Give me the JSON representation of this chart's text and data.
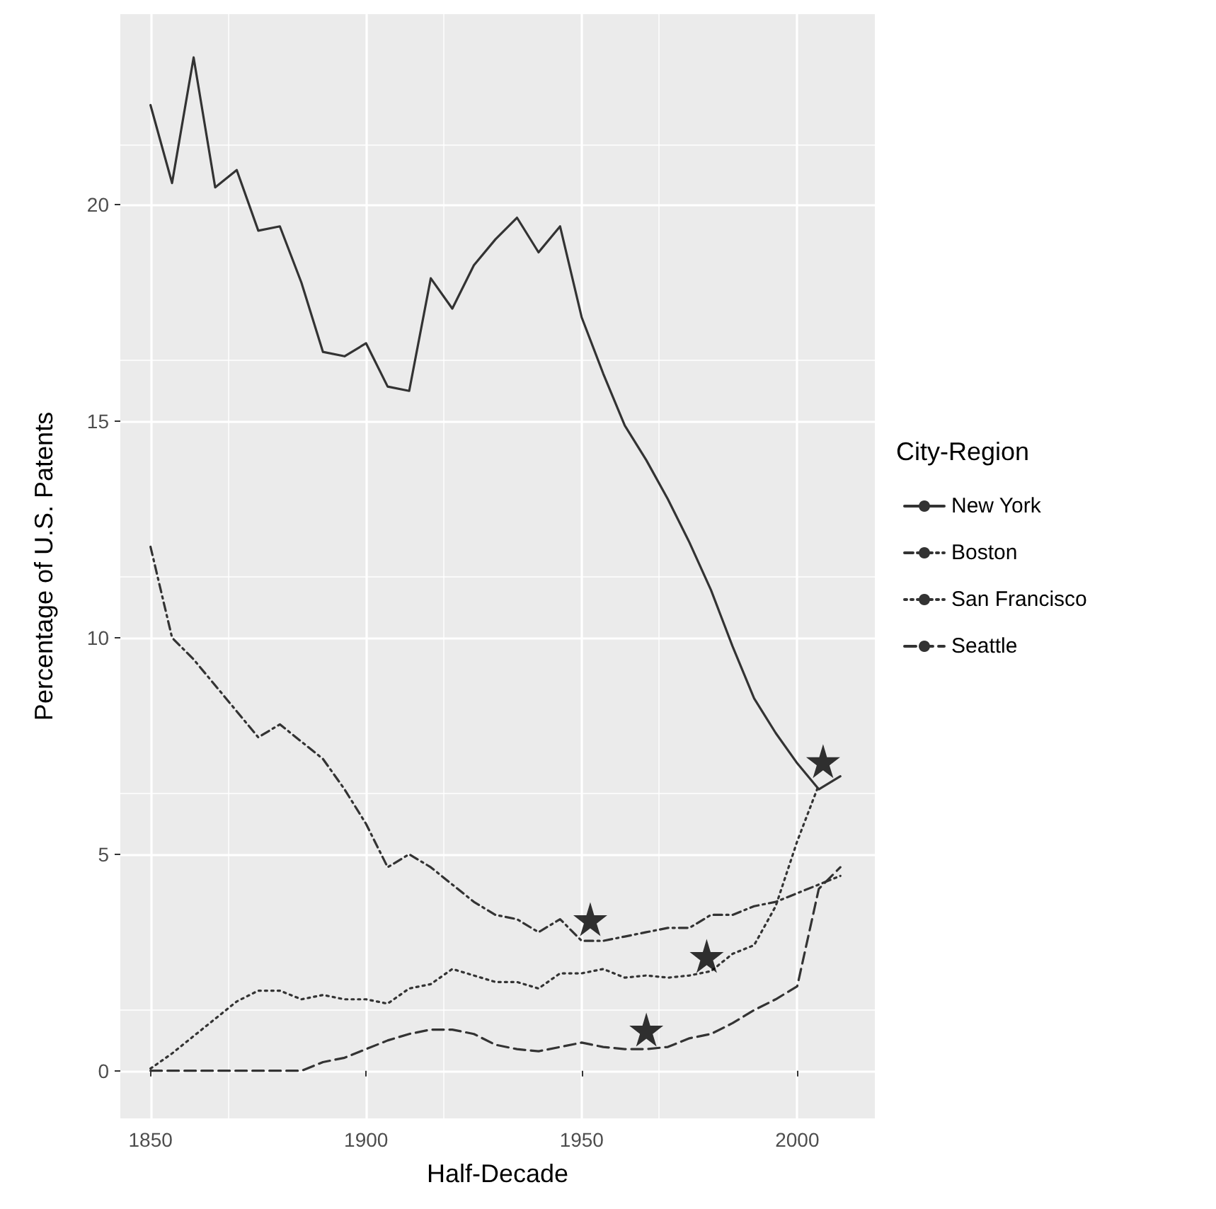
{
  "chart_data": {
    "type": "line",
    "xlabel": "Half-Decade",
    "ylabel": "Percentage of U.S. Patents",
    "legend_title": "City-Region",
    "legend": "right",
    "grid": true,
    "xlim": [
      1843,
      2018
    ],
    "ylim": [
      -1.1,
      24.4
    ],
    "xticks": [
      1850,
      1900,
      1950,
      2000
    ],
    "yticks": [
      0,
      5,
      10,
      15,
      20
    ],
    "series": [
      {
        "name": "New York",
        "color": "#333333",
        "line_style": "solid",
        "x": [
          1850,
          1855,
          1860,
          1865,
          1870,
          1875,
          1880,
          1885,
          1890,
          1895,
          1900,
          1905,
          1910,
          1915,
          1920,
          1925,
          1930,
          1935,
          1940,
          1945,
          1950,
          1955,
          1960,
          1965,
          1970,
          1975,
          1980,
          1985,
          1990,
          1995,
          2000,
          2005,
          2010
        ],
        "values": [
          22.3,
          20.5,
          23.4,
          20.4,
          20.8,
          19.4,
          19.5,
          18.2,
          16.6,
          16.5,
          16.8,
          15.8,
          15.7,
          18.3,
          17.6,
          18.6,
          19.2,
          19.7,
          18.9,
          19.5,
          17.4,
          16.1,
          14.9,
          14.1,
          13.2,
          12.2,
          11.1,
          9.8,
          8.6,
          7.8,
          7.1,
          6.5,
          6.8
        ]
      },
      {
        "name": "Boston",
        "color": "#333333",
        "line_style": "dashdot",
        "x": [
          1850,
          1855,
          1860,
          1865,
          1870,
          1875,
          1880,
          1885,
          1890,
          1895,
          1900,
          1905,
          1910,
          1915,
          1920,
          1925,
          1930,
          1935,
          1940,
          1945,
          1950,
          1955,
          1960,
          1965,
          1970,
          1975,
          1980,
          1985,
          1990,
          1995,
          2000,
          2005,
          2010
        ],
        "values": [
          12.1,
          10.0,
          9.5,
          8.9,
          8.3,
          7.7,
          8.0,
          7.6,
          7.2,
          6.5,
          5.7,
          4.7,
          5.0,
          4.7,
          4.3,
          3.9,
          3.6,
          3.5,
          3.2,
          3.5,
          3.0,
          3.0,
          3.1,
          3.2,
          3.3,
          3.3,
          3.6,
          3.6,
          3.8,
          3.9,
          4.1,
          4.3,
          4.5
        ]
      },
      {
        "name": "San Francisco",
        "color": "#333333",
        "line_style": "dotted",
        "x": [
          1850,
          1855,
          1860,
          1865,
          1870,
          1875,
          1880,
          1885,
          1890,
          1895,
          1900,
          1905,
          1910,
          1915,
          1920,
          1925,
          1930,
          1935,
          1940,
          1945,
          1950,
          1955,
          1960,
          1965,
          1970,
          1975,
          1980,
          1985,
          1990,
          1995,
          2000,
          2005
        ],
        "values": [
          0.05,
          0.4,
          0.8,
          1.2,
          1.6,
          1.85,
          1.85,
          1.65,
          1.75,
          1.65,
          1.65,
          1.55,
          1.9,
          2.0,
          2.35,
          2.2,
          2.05,
          2.05,
          1.9,
          2.25,
          2.25,
          2.35,
          2.15,
          2.2,
          2.15,
          2.2,
          2.3,
          2.7,
          2.9,
          3.8,
          5.3,
          6.6
        ]
      },
      {
        "name": "Seattle",
        "color": "#333333",
        "line_style": "dashed",
        "x": [
          1850,
          1855,
          1860,
          1865,
          1870,
          1875,
          1880,
          1885,
          1890,
          1895,
          1900,
          1905,
          1910,
          1915,
          1920,
          1925,
          1930,
          1935,
          1940,
          1945,
          1950,
          1955,
          1960,
          1965,
          1970,
          1975,
          1980,
          1985,
          1990,
          1995,
          2000,
          2005,
          2010
        ],
        "values": [
          0,
          0,
          0,
          0,
          0,
          0,
          0,
          0,
          0.2,
          0.3,
          0.5,
          0.7,
          0.85,
          0.95,
          0.95,
          0.85,
          0.6,
          0.5,
          0.45,
          0.55,
          0.65,
          0.55,
          0.5,
          0.5,
          0.55,
          0.75,
          0.85,
          1.1,
          1.4,
          1.65,
          1.95,
          4.2,
          4.7
        ]
      },
      {
        "type": "scatter",
        "marker": "star",
        "color": "#000000",
        "x": [
          1952,
          1965,
          1979,
          2006
        ],
        "values": [
          3.5,
          0.95,
          2.65,
          7.15
        ]
      }
    ]
  }
}
